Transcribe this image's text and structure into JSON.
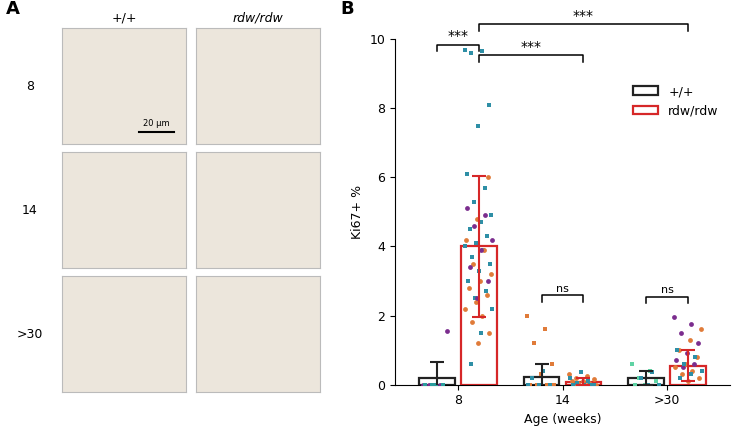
{
  "panel_labels": [
    "A",
    "B"
  ],
  "panel_a": {
    "columns": [
      "+/+",
      "rdw/rdw"
    ],
    "rows": [
      "8",
      "14",
      ">30"
    ],
    "scale_bar": "20 µm"
  },
  "chart_data": {
    "type": "bar",
    "categories": [
      "8",
      "14",
      ">30"
    ],
    "xlabel": "Age (weeks)",
    "ylabel": "Ki67+ %",
    "ylim": [
      0,
      10
    ],
    "yticks": [
      0,
      2,
      4,
      6,
      8,
      10
    ],
    "legend": "upper right",
    "series": [
      {
        "name": "+/+",
        "color": "#222222",
        "values": [
          0.2,
          0.22,
          0.2
        ],
        "error": [
          0.45,
          0.38,
          0.2
        ],
        "points": [
          [
            {
              "color": "#7b2d8e",
              "marker": "circle",
              "values": [
                0,
                0,
                0,
                1.55
              ]
            },
            {
              "color": "#2a9d9d",
              "marker": "square",
              "values": [
                0,
                0,
                0,
                0
              ]
            }
          ],
          [
            {
              "color": "#e07b39",
              "marker": "square",
              "values": [
                2.0,
                1.6,
                1.2,
                0.6,
                0.3,
                0,
                0,
                0,
                0
              ]
            },
            {
              "color": "#2e8fa6",
              "marker": "square",
              "values": [
                0.4,
                0.2,
                0,
                0,
                0
              ]
            }
          ],
          [
            {
              "color": "#5fd3a4",
              "marker": "square",
              "values": [
                0.6,
                0.4,
                0.2,
                0.1,
                0,
                0
              ]
            },
            {
              "color": "#2e8fa6",
              "marker": "square",
              "values": [
                0.35,
                0.2,
                0,
                0
              ]
            }
          ]
        ]
      },
      {
        "name": "rdw/rdw",
        "color": "#d62728",
        "values": [
          4.0,
          0.08,
          0.55
        ],
        "error": [
          2.05,
          0.1,
          0.45
        ],
        "points": [
          [
            {
              "color": "#2e8fa6",
              "marker": "square",
              "values": [
                9.7,
                9.65,
                9.6,
                8.1,
                7.5,
                6.1,
                5.7,
                5.3,
                4.9,
                4.7,
                4.5,
                4.3,
                4.1,
                4.0,
                3.9,
                3.7,
                3.5,
                3.3,
                3.0,
                2.7,
                2.5,
                2.2,
                1.5,
                0.6
              ]
            },
            {
              "color": "#e07b39",
              "marker": "circle",
              "values": [
                6.0,
                4.8,
                4.2,
                3.9,
                3.5,
                3.2,
                3.0,
                2.8,
                2.6,
                2.4,
                2.2,
                2.0,
                1.8,
                1.5,
                1.2
              ]
            },
            {
              "color": "#7b2d8e",
              "marker": "circle",
              "values": [
                5.1,
                4.9,
                4.6,
                4.2,
                3.9,
                3.4,
                3.0,
                2.5
              ]
            }
          ],
          [
            {
              "color": "#e07b39",
              "marker": "circle",
              "values": [
                0.3,
                0.25,
                0.2,
                0.15,
                0.1,
                0.1,
                0.05,
                0.05,
                0,
                0,
                0,
                0
              ]
            },
            {
              "color": "#2e8fa6",
              "marker": "square",
              "values": [
                0.35,
                0.2,
                0.1,
                0.05,
                0,
                0,
                0,
                0
              ]
            }
          ],
          [
            {
              "color": "#7b2d8e",
              "marker": "circle",
              "values": [
                1.95,
                1.75,
                1.5,
                1.2,
                0.9,
                0.7,
                0.6,
                0.5
              ]
            },
            {
              "color": "#e07b39",
              "marker": "circle",
              "values": [
                1.6,
                1.3,
                1.0,
                0.8,
                0.6,
                0.5,
                0.4,
                0.3,
                0.2,
                0.1
              ]
            },
            {
              "color": "#2e8fa6",
              "marker": "square",
              "values": [
                1.0,
                0.8,
                0.6,
                0.4,
                0.3,
                0.2
              ]
            }
          ]
        ]
      }
    ],
    "comparisons": [
      {
        "from": [
          0,
          0
        ],
        "to": [
          0,
          1
        ],
        "label": "***"
      },
      {
        "from": [
          0,
          1
        ],
        "to": [
          1,
          1
        ],
        "label": "***"
      },
      {
        "from": [
          0,
          1
        ],
        "to": [
          2,
          1
        ],
        "label": "***"
      },
      {
        "from": [
          1,
          0
        ],
        "to": [
          1,
          1
        ],
        "label": "ns"
      },
      {
        "from": [
          2,
          0
        ],
        "to": [
          2,
          1
        ],
        "label": "ns"
      }
    ]
  }
}
